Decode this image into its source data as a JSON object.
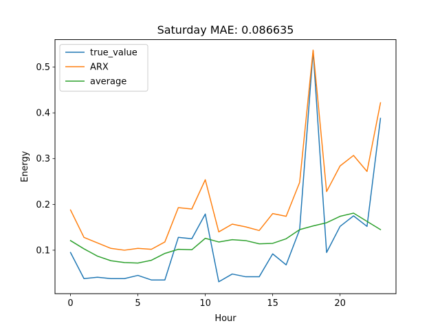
{
  "chart_data": {
    "type": "line",
    "title": "Saturday MAE: 0.086635",
    "xlabel": "Hour",
    "ylabel": "Energy",
    "xlim": [
      -1.15,
      24.15
    ],
    "ylim": [
      0.005,
      0.56
    ],
    "xticks": [
      0,
      5,
      10,
      15,
      20
    ],
    "yticks": [
      0.1,
      0.2,
      0.3,
      0.4,
      0.5
    ],
    "xtick_labels": [
      "0",
      "5",
      "10",
      "15",
      "20"
    ],
    "ytick_labels": [
      "0.1",
      "0.2",
      "0.3",
      "0.4",
      "0.5"
    ],
    "grid": false,
    "legend_position": "upper-left",
    "x": [
      0,
      1,
      2,
      3,
      4,
      5,
      6,
      7,
      8,
      9,
      10,
      11,
      12,
      13,
      14,
      15,
      16,
      17,
      18,
      19,
      20,
      21,
      22,
      23
    ],
    "series": [
      {
        "name": "true_value",
        "color": "#1f77b4",
        "values": [
          0.095,
          0.038,
          0.041,
          0.038,
          0.038,
          0.045,
          0.035,
          0.035,
          0.128,
          0.125,
          0.179,
          0.031,
          0.048,
          0.042,
          0.042,
          0.092,
          0.068,
          0.145,
          0.535,
          0.095,
          0.152,
          0.175,
          0.152,
          0.388
        ]
      },
      {
        "name": "ARX",
        "color": "#ff7f0e",
        "values": [
          0.188,
          0.128,
          0.116,
          0.104,
          0.1,
          0.104,
          0.102,
          0.118,
          0.193,
          0.19,
          0.254,
          0.14,
          0.157,
          0.151,
          0.143,
          0.18,
          0.174,
          0.248,
          0.537,
          0.228,
          0.284,
          0.307,
          0.272,
          0.422
        ]
      },
      {
        "name": "average",
        "color": "#2ca02c",
        "values": [
          0.121,
          0.103,
          0.087,
          0.077,
          0.073,
          0.072,
          0.078,
          0.093,
          0.102,
          0.101,
          0.126,
          0.118,
          0.123,
          0.121,
          0.114,
          0.115,
          0.125,
          0.145,
          0.153,
          0.16,
          0.174,
          0.181,
          0.163,
          0.145
        ]
      }
    ]
  }
}
